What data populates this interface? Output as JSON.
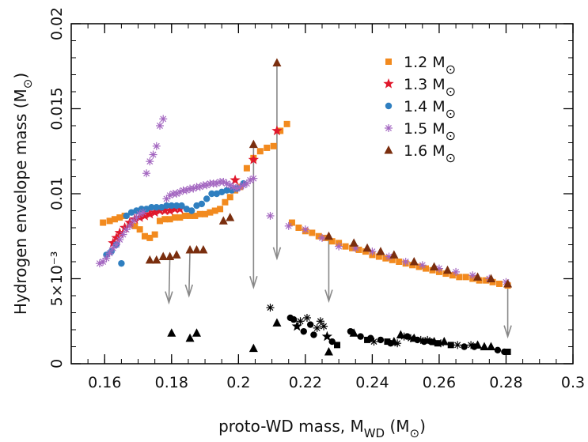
{
  "chart_data": {
    "type": "scatter",
    "xlabel": "proto-WD mass, M_WD (M⊙)",
    "ylabel": "Hydrogen envelope mass (M⊙)",
    "xlim": [
      0.15,
      0.3
    ],
    "ylim": [
      0,
      0.02
    ],
    "x_ticks": [
      0.16,
      0.18,
      0.2,
      0.22,
      0.24,
      0.26,
      0.28,
      0.3
    ],
    "x_tick_labels": [
      "0.16",
      "0.18",
      "0.2",
      "0.22",
      "0.24",
      "0.26",
      "0.28",
      "0.3"
    ],
    "y_ticks": [
      0,
      0.005,
      0.01,
      0.015,
      0.02
    ],
    "y_tick_labels": [
      "0",
      "5×10⁻³",
      "0.01",
      "0.015",
      "0.02"
    ],
    "grid": false,
    "legend_position": "top-right",
    "colors": {
      "m12": "#f28a1e",
      "m13": "#e0182c",
      "m14": "#2f7fc0",
      "m15": "#a366c0",
      "m16": "#7a2e0e",
      "final": "#000000",
      "arrow": "#888888"
    },
    "series": [
      {
        "name": "1.2 M⊙",
        "marker": "square",
        "color": "#f28a1e",
        "x": [
          0.1595,
          0.1615,
          0.163,
          0.1645,
          0.166,
          0.1675,
          0.169,
          0.1705,
          0.172,
          0.1735,
          0.175,
          0.1765,
          0.178,
          0.1795,
          0.181,
          0.1825,
          0.184,
          0.1855,
          0.187,
          0.1885,
          0.19,
          0.1915,
          0.193,
          0.1945,
          0.196,
          0.1975,
          0.199,
          0.2005,
          0.2025,
          0.2045,
          0.2065,
          0.2085,
          0.2105,
          0.2125,
          0.2145,
          0.216,
          0.218,
          0.22,
          0.222,
          0.224,
          0.226,
          0.228,
          0.23,
          0.232,
          0.234,
          0.236,
          0.238,
          0.24,
          0.242,
          0.244,
          0.246,
          0.248,
          0.25,
          0.252,
          0.254,
          0.256,
          0.258,
          0.26,
          0.262,
          0.264,
          0.266,
          0.268,
          0.27,
          0.272,
          0.274,
          0.276,
          0.278,
          0.2805
        ],
        "y": [
          0.0083,
          0.0084,
          0.0085,
          0.0086,
          0.0087,
          0.0082,
          0.0081,
          0.0079,
          0.0075,
          0.0074,
          0.0076,
          0.0084,
          0.0085,
          0.0085,
          0.0086,
          0.0086,
          0.0087,
          0.0087,
          0.0087,
          0.0088,
          0.0088,
          0.0089,
          0.009,
          0.0091,
          0.0095,
          0.0098,
          0.0102,
          0.0104,
          0.0115,
          0.0121,
          0.0125,
          0.0127,
          0.0128,
          0.0137,
          0.0141,
          0.0083,
          0.008,
          0.0078,
          0.0077,
          0.0075,
          0.0074,
          0.0072,
          0.0071,
          0.0069,
          0.0068,
          0.0067,
          0.0066,
          0.0064,
          0.0063,
          0.0062,
          0.0061,
          0.006,
          0.0059,
          0.0058,
          0.0057,
          0.0056,
          0.0055,
          0.0054,
          0.0053,
          0.0052,
          0.0051,
          0.0051,
          0.005,
          0.0049,
          0.0049,
          0.0048,
          0.0047,
          0.0046
        ]
      },
      {
        "name": "1.3 M⊙",
        "marker": "star5",
        "color": "#e0182c",
        "x": [
          0.1625,
          0.1635,
          0.1645,
          0.166,
          0.1675,
          0.169,
          0.1705,
          0.172,
          0.1735,
          0.175,
          0.1765,
          0.178,
          0.1795,
          0.181,
          0.1825,
          0.199,
          0.2045,
          0.2115
        ],
        "y": [
          0.0071,
          0.0074,
          0.0077,
          0.008,
          0.0083,
          0.0085,
          0.0086,
          0.0087,
          0.0088,
          0.0089,
          0.009,
          0.009,
          0.009,
          0.0091,
          0.0091,
          0.0108,
          0.012,
          0.0137
        ]
      },
      {
        "name": "1.4 M⊙",
        "marker": "circle",
        "color": "#2f7fc0",
        "x": [
          0.1605,
          0.162,
          0.1635,
          0.165,
          0.1665,
          0.168,
          0.1695,
          0.171,
          0.1725,
          0.174,
          0.1755,
          0.177,
          0.1785,
          0.18,
          0.1815,
          0.183,
          0.1845,
          0.186,
          0.1875,
          0.189,
          0.1905,
          0.192,
          0.1935,
          0.195,
          0.1965,
          0.198,
          0.1995,
          0.2015
        ],
        "y": [
          0.0064,
          0.0066,
          0.007,
          0.0059,
          0.0087,
          0.0089,
          0.009,
          0.0091,
          0.0091,
          0.0092,
          0.0092,
          0.0092,
          0.0093,
          0.0093,
          0.0093,
          0.0093,
          0.0091,
          0.009,
          0.0093,
          0.0094,
          0.0097,
          0.01,
          0.01,
          0.0101,
          0.0102,
          0.0102,
          0.0103,
          0.0106
        ]
      },
      {
        "name": "1.5 M⊙",
        "marker": "asterisk",
        "color": "#a366c0",
        "x": [
          0.1585,
          0.1595,
          0.1605,
          0.1615,
          0.1625,
          0.1635,
          0.1645,
          0.1655,
          0.1665,
          0.1675,
          0.1685,
          0.1695,
          0.1705,
          0.1715,
          0.1725,
          0.1735,
          0.1745,
          0.1755,
          0.1765,
          0.1775,
          0.1785,
          0.1795,
          0.1805,
          0.1815,
          0.1825,
          0.1835,
          0.1845,
          0.1855,
          0.1865,
          0.1875,
          0.1885,
          0.1895,
          0.1905,
          0.1915,
          0.1925,
          0.1935,
          0.1945,
          0.1955,
          0.1965,
          0.1975,
          0.1985,
          0.1995,
          0.2005,
          0.2015,
          0.2025,
          0.2035,
          0.2045,
          0.2095,
          0.215,
          0.22,
          0.225,
          0.23,
          0.235,
          0.24,
          0.245,
          0.25,
          0.255,
          0.26,
          0.265,
          0.27,
          0.275,
          0.28
        ],
        "y": [
          0.0059,
          0.006,
          0.0062,
          0.0065,
          0.0068,
          0.007,
          0.0073,
          0.0076,
          0.0079,
          0.0081,
          0.0084,
          0.0086,
          0.0088,
          0.0089,
          0.0112,
          0.0119,
          0.0123,
          0.0128,
          0.014,
          0.0144,
          0.0097,
          0.0099,
          0.01,
          0.01,
          0.0101,
          0.0102,
          0.0102,
          0.0103,
          0.0103,
          0.0104,
          0.0104,
          0.0105,
          0.0105,
          0.0106,
          0.0106,
          0.0106,
          0.0107,
          0.0107,
          0.0106,
          0.0105,
          0.0104,
          0.0103,
          0.0104,
          0.0105,
          0.0106,
          0.0108,
          0.0109,
          0.0087,
          0.0081,
          0.0079,
          0.0074,
          0.0069,
          0.0068,
          0.0066,
          0.0063,
          0.006,
          0.0058,
          0.0056,
          0.0054,
          0.0052,
          0.005,
          0.0048
        ]
      },
      {
        "name": "1.6 M⊙",
        "marker": "triangle",
        "color": "#7a2e0e",
        "x": [
          0.1735,
          0.1755,
          0.1775,
          0.1795,
          0.1815,
          0.1855,
          0.1875,
          0.1895,
          0.1955,
          0.1975,
          0.2045,
          0.2115,
          0.227,
          0.2345,
          0.2385,
          0.2425,
          0.2465,
          0.2525,
          0.2585,
          0.2625,
          0.2715,
          0.2755,
          0.2805
        ],
        "y": [
          0.0061,
          0.0061,
          0.0063,
          0.0063,
          0.0064,
          0.0067,
          0.0067,
          0.0067,
          0.0084,
          0.0086,
          0.0129,
          0.0177,
          0.0075,
          0.0071,
          0.0068,
          0.0066,
          0.0064,
          0.006,
          0.0057,
          0.0055,
          0.0051,
          0.005,
          0.0047
        ]
      },
      {
        "marker": "mixed-black",
        "color": "#000000",
        "points": [
          [
            0.18,
            0.0018,
            "triangle"
          ],
          [
            0.1855,
            0.0015,
            "triangle"
          ],
          [
            0.1875,
            0.0018,
            "triangle"
          ],
          [
            0.2045,
            0.0009,
            "triangle"
          ],
          [
            0.2095,
            0.0033,
            "asterisk"
          ],
          [
            0.2115,
            0.0024,
            "triangle"
          ],
          [
            0.2155,
            0.0027,
            "circle"
          ],
          [
            0.2165,
            0.0026,
            "circle"
          ],
          [
            0.2175,
            0.0022,
            "star5"
          ],
          [
            0.2185,
            0.0025,
            "asterisk"
          ],
          [
            0.2195,
            0.0019,
            "circle"
          ],
          [
            0.2205,
            0.0027,
            "asterisk"
          ],
          [
            0.2215,
            0.0023,
            "circle"
          ],
          [
            0.2225,
            0.0017,
            "circle"
          ],
          [
            0.2235,
            0.0021,
            "asterisk"
          ],
          [
            0.2245,
            0.0025,
            "asterisk"
          ],
          [
            0.2255,
            0.0022,
            "asterisk"
          ],
          [
            0.2265,
            0.0016,
            "star5"
          ],
          [
            0.227,
            0.0007,
            "triangle"
          ],
          [
            0.228,
            0.0013,
            "circle"
          ],
          [
            0.2295,
            0.0011,
            "square"
          ],
          [
            0.2335,
            0.0019,
            "circle"
          ],
          [
            0.2345,
            0.0018,
            "triangle"
          ],
          [
            0.2365,
            0.0016,
            "circle"
          ],
          [
            0.2385,
            0.0014,
            "square"
          ],
          [
            0.2395,
            0.0015,
            "circle"
          ],
          [
            0.2405,
            0.0013,
            "asterisk"
          ],
          [
            0.2425,
            0.0014,
            "circle"
          ],
          [
            0.2445,
            0.0013,
            "square"
          ],
          [
            0.2455,
            0.0012,
            "circle"
          ],
          [
            0.2465,
            0.0013,
            "triangle"
          ],
          [
            0.2475,
            0.0012,
            "asterisk"
          ],
          [
            0.2485,
            0.0017,
            "triangle"
          ],
          [
            0.2495,
            0.0016,
            "asterisk"
          ],
          [
            0.2505,
            0.0016,
            "circle"
          ],
          [
            0.2515,
            0.0015,
            "asterisk"
          ],
          [
            0.2525,
            0.0015,
            "triangle"
          ],
          [
            0.2535,
            0.0014,
            "circle"
          ],
          [
            0.2545,
            0.0014,
            "asterisk"
          ],
          [
            0.2555,
            0.0013,
            "circle"
          ],
          [
            0.2565,
            0.0014,
            "asterisk"
          ],
          [
            0.2575,
            0.0013,
            "circle"
          ],
          [
            0.2585,
            0.0013,
            "triangle"
          ],
          [
            0.2595,
            0.0012,
            "square"
          ],
          [
            0.2605,
            0.0012,
            "asterisk"
          ],
          [
            0.2615,
            0.0013,
            "triangle"
          ],
          [
            0.2635,
            0.0011,
            "square"
          ],
          [
            0.2655,
            0.0011,
            "asterisk"
          ],
          [
            0.2675,
            0.001,
            "circle"
          ],
          [
            0.2695,
            0.0011,
            "asterisk"
          ],
          [
            0.2705,
            0.001,
            "circle"
          ],
          [
            0.2715,
            0.0011,
            "triangle"
          ],
          [
            0.2735,
            0.001,
            "triangle"
          ],
          [
            0.2755,
            0.001,
            "triangle"
          ],
          [
            0.2775,
            0.0008,
            "circle"
          ],
          [
            0.2795,
            0.0007,
            "circle"
          ],
          [
            0.2805,
            0.0007,
            "square"
          ]
        ]
      }
    ],
    "arrows": [
      {
        "x1": 0.1795,
        "y1": 0.0063,
        "x2": 0.1792,
        "y2": 0.0036
      },
      {
        "x1": 0.1855,
        "y1": 0.0067,
        "x2": 0.1852,
        "y2": 0.004
      },
      {
        "x1": 0.2045,
        "y1": 0.0129,
        "x2": 0.2045,
        "y2": 0.0045
      },
      {
        "x1": 0.2115,
        "y1": 0.0177,
        "x2": 0.2115,
        "y2": 0.0062
      },
      {
        "x1": 0.227,
        "y1": 0.0075,
        "x2": 0.227,
        "y2": 0.0037
      },
      {
        "x1": 0.2805,
        "y1": 0.0047,
        "x2": 0.2805,
        "y2": 0.0016
      }
    ],
    "legend": [
      {
        "label": "1.2 M",
        "sub": "⊙",
        "marker": "square",
        "color": "#f28a1e"
      },
      {
        "label": "1.3 M",
        "sub": "⊙",
        "marker": "star5",
        "color": "#e0182c"
      },
      {
        "label": "1.4 M",
        "sub": "⊙",
        "marker": "circle",
        "color": "#2f7fc0"
      },
      {
        "label": "1.5 M",
        "sub": "⊙",
        "marker": "asterisk",
        "color": "#a366c0"
      },
      {
        "label": "1.6 M",
        "sub": "⊙",
        "marker": "triangle",
        "color": "#7a2e0e"
      }
    ]
  }
}
